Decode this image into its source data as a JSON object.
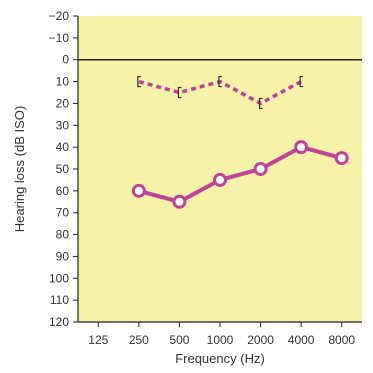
{
  "chart_data": {
    "type": "line",
    "xlabel": "Frequency (Hz)",
    "ylabel": "Hearing loss (dB ISO)",
    "categories": [
      "125",
      "250",
      "500",
      "1000",
      "2000",
      "4000",
      "8000"
    ],
    "y_ticks": [
      "−20",
      "−10",
      "0",
      "10",
      "20",
      "30",
      "40",
      "50",
      "60",
      "70",
      "80",
      "90",
      "100",
      "110",
      "120"
    ],
    "ylim": [
      -20,
      120
    ],
    "y_inverted": true,
    "reference_line_y": 0,
    "grid": false,
    "series": [
      {
        "style": "solid-circles",
        "color": "#c0439a",
        "x": [
          "250",
          "500",
          "1000",
          "2000",
          "4000",
          "8000"
        ],
        "values": [
          60,
          65,
          55,
          50,
          40,
          45
        ]
      },
      {
        "style": "dashed-brackets",
        "color": "#c0439a",
        "x": [
          "250",
          "500",
          "1000",
          "2000",
          "4000"
        ],
        "values": [
          10,
          15,
          10,
          20,
          10
        ]
      }
    ],
    "colors": {
      "background": "#f6f2a8",
      "axis": "#222222"
    }
  }
}
